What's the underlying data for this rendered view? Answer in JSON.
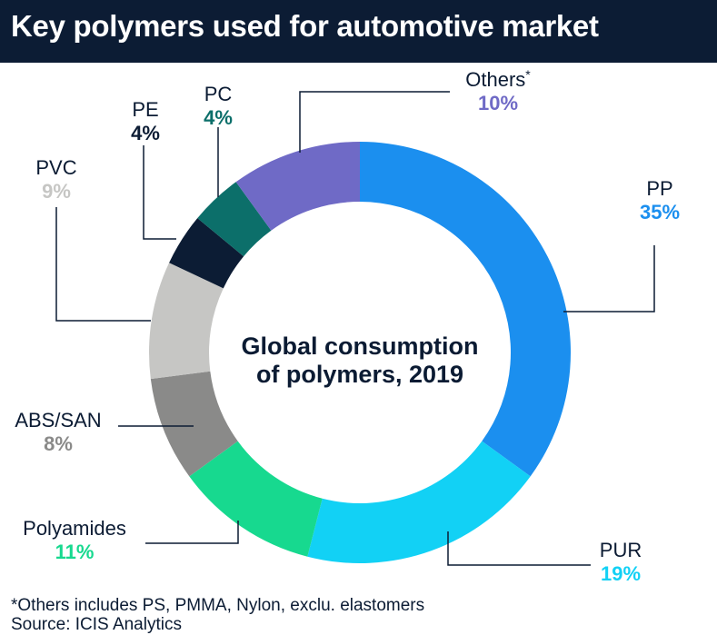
{
  "header": {
    "title": "Key polymers used for automotive market"
  },
  "chart_data": {
    "type": "pie",
    "title": "Key polymers used for automotive market",
    "center_label": [
      "Global consumption",
      "of polymers, 2019"
    ],
    "unit": "%",
    "slices": [
      {
        "name": "PP",
        "value": 35,
        "label": "35%",
        "color": "#1b8fef"
      },
      {
        "name": "PUR",
        "value": 19,
        "label": "19%",
        "color": "#12d1f5"
      },
      {
        "name": "Polyamides",
        "value": 11,
        "label": "11%",
        "color": "#17d98f"
      },
      {
        "name": "ABS/SAN",
        "value": 8,
        "label": "8%",
        "color": "#8a8a89"
      },
      {
        "name": "PVC",
        "value": 9,
        "label": "9%",
        "color": "#c6c6c4"
      },
      {
        "name": "PE",
        "value": 4,
        "label": "4%",
        "color": "#0c1c34"
      },
      {
        "name": "PC",
        "value": 4,
        "label": "4%",
        "color": "#0c6f6a"
      },
      {
        "name": "Others",
        "value": 10,
        "label": "10%",
        "color": "#6f6ac6",
        "marker": "*"
      }
    ]
  },
  "footnote": {
    "line1": "*Others includes PS, PMMA, Nylon, exclu. elastomers",
    "line2": "Source: ICIS Analytics"
  }
}
